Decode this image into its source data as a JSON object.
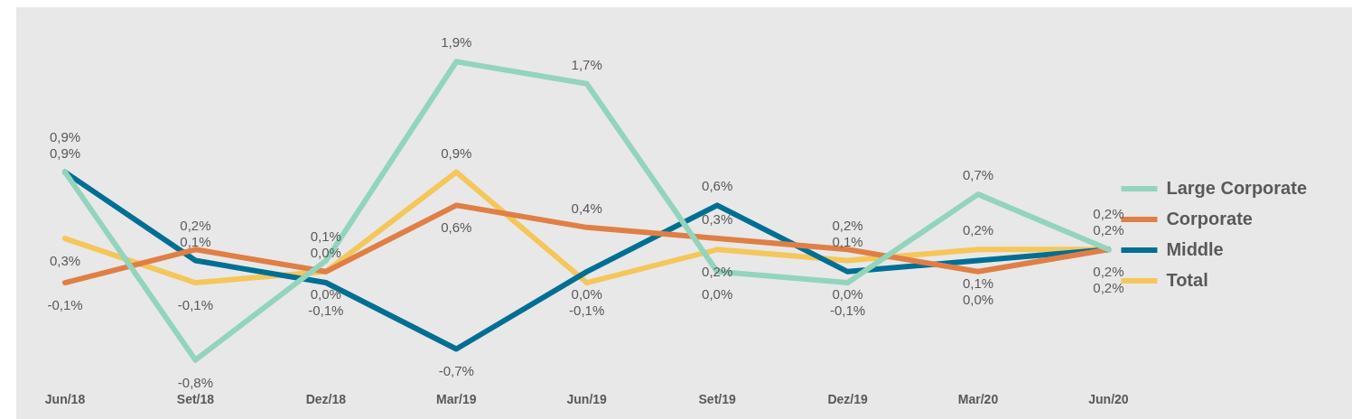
{
  "chart_data": {
    "type": "line",
    "categories": [
      "Jun/18",
      "Set/18",
      "Dez/18",
      "Mar/19",
      "Jun/19",
      "Set/19",
      "Dez/19",
      "Mar/20",
      "Jun/20"
    ],
    "series": [
      {
        "name": "Large Corporate",
        "color": "#93d4bd",
        "values": [
          0.9,
          -0.8,
          0.1,
          1.9,
          1.7,
          0.0,
          -0.1,
          0.7,
          0.2
        ],
        "value_labels": [
          "0,9%",
          "-0,8%",
          "0,1%",
          "1,9%",
          "1,7%",
          "0,0%",
          "-0,1%",
          "0,7%",
          "0,2%"
        ]
      },
      {
        "name": "Corporate",
        "color": "#e07f45",
        "values": [
          -0.1,
          0.2,
          0.0,
          0.6,
          0.4,
          0.3,
          0.2,
          0.0,
          0.2
        ],
        "value_labels": [
          "-0,1%",
          "0,2%",
          "0,0%",
          "0,6%",
          "0,4%",
          "0,3%",
          "0,2%",
          "0,0%",
          "0,2%"
        ]
      },
      {
        "name": "Middle",
        "color": "#006f94",
        "values": [
          0.9,
          0.1,
          -0.1,
          -0.7,
          0.0,
          0.6,
          0.0,
          0.1,
          0.2
        ],
        "value_labels": [
          "0,9%",
          "0,1%",
          "-0,1%",
          "-0,7%",
          "0,0%",
          "0,6%",
          "0,0%",
          "0,1%",
          "0,2%"
        ]
      },
      {
        "name": "Total",
        "color": "#f5c75b",
        "values": [
          0.3,
          -0.1,
          0.0,
          0.9,
          -0.1,
          0.2,
          0.1,
          0.2,
          0.2
        ],
        "value_labels": [
          "0,3%",
          "-0,1%",
          "0,0%",
          "0,9%",
          "-0,1%",
          "0,2%",
          "0,1%",
          "0,2%",
          "0,2%"
        ]
      }
    ],
    "legend": "right",
    "grid": false,
    "marker": "none",
    "line_style": "solid"
  }
}
